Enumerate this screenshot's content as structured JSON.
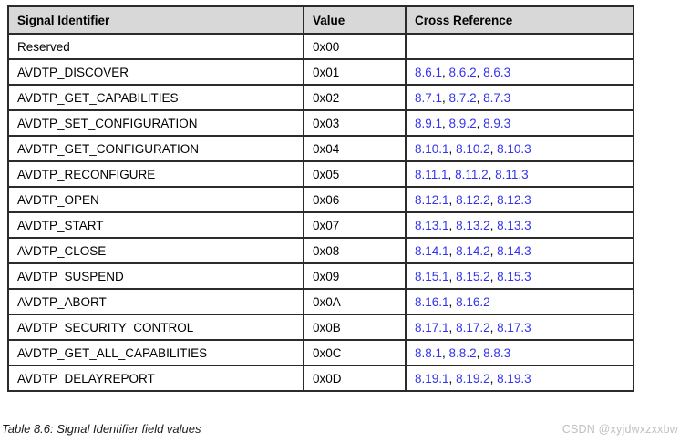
{
  "table": {
    "columns": [
      "Signal Identifier",
      "Value",
      "Cross Reference"
    ],
    "rows": [
      {
        "signal": "Reserved",
        "value": "0x00",
        "refs": []
      },
      {
        "signal": "AVDTP_DISCOVER",
        "value": "0x01",
        "refs": [
          "8.6.1",
          "8.6.2",
          "8.6.3"
        ]
      },
      {
        "signal": "AVDTP_GET_CAPABILITIES",
        "value": "0x02",
        "refs": [
          "8.7.1",
          "8.7.2",
          "8.7.3"
        ]
      },
      {
        "signal": "AVDTP_SET_CONFIGURATION",
        "value": "0x03",
        "refs": [
          "8.9.1",
          "8.9.2",
          "8.9.3"
        ]
      },
      {
        "signal": "AVDTP_GET_CONFIGURATION",
        "value": "0x04",
        "refs": [
          "8.10.1",
          "8.10.2",
          "8.10.3"
        ]
      },
      {
        "signal": "AVDTP_RECONFIGURE",
        "value": "0x05",
        "refs": [
          "8.11.1",
          "8.11.2",
          "8.11.3"
        ]
      },
      {
        "signal": "AVDTP_OPEN",
        "value": "0x06",
        "refs": [
          "8.12.1",
          "8.12.2",
          "8.12.3"
        ]
      },
      {
        "signal": "AVDTP_START",
        "value": "0x07",
        "refs": [
          "8.13.1",
          "8.13.2",
          "8.13.3"
        ]
      },
      {
        "signal": "AVDTP_CLOSE",
        "value": "0x08",
        "refs": [
          "8.14.1",
          "8.14.2",
          "8.14.3"
        ]
      },
      {
        "signal": "AVDTP_SUSPEND",
        "value": "0x09",
        "refs": [
          "8.15.1",
          "8.15.2",
          "8.15.3"
        ]
      },
      {
        "signal": "AVDTP_ABORT",
        "value": "0x0A",
        "refs": [
          "8.16.1",
          "8.16.2"
        ]
      },
      {
        "signal": "AVDTP_SECURITY_CONTROL",
        "value": "0x0B",
        "refs": [
          "8.17.1",
          "8.17.2",
          "8.17.3"
        ]
      },
      {
        "signal": "AVDTP_GET_ALL_CAPABILITIES",
        "value": "0x0C",
        "refs": [
          "8.8.1",
          "8.8.2",
          "8.8.3"
        ]
      },
      {
        "signal": "AVDTP_DELAYREPORT",
        "value": "0x0D",
        "refs": [
          "8.19.1",
          "8.19.2",
          "8.19.3"
        ]
      }
    ],
    "ref_separator": ", ",
    "caption": "Table 8.6: Signal Identifier field values"
  },
  "watermark": "CSDN @xyjdwxzxxbw",
  "colors": {
    "link": "#3333ee",
    "header_bg": "#d8d8d8",
    "border": "#2b2b2b",
    "watermark": "#c0c0c0"
  }
}
